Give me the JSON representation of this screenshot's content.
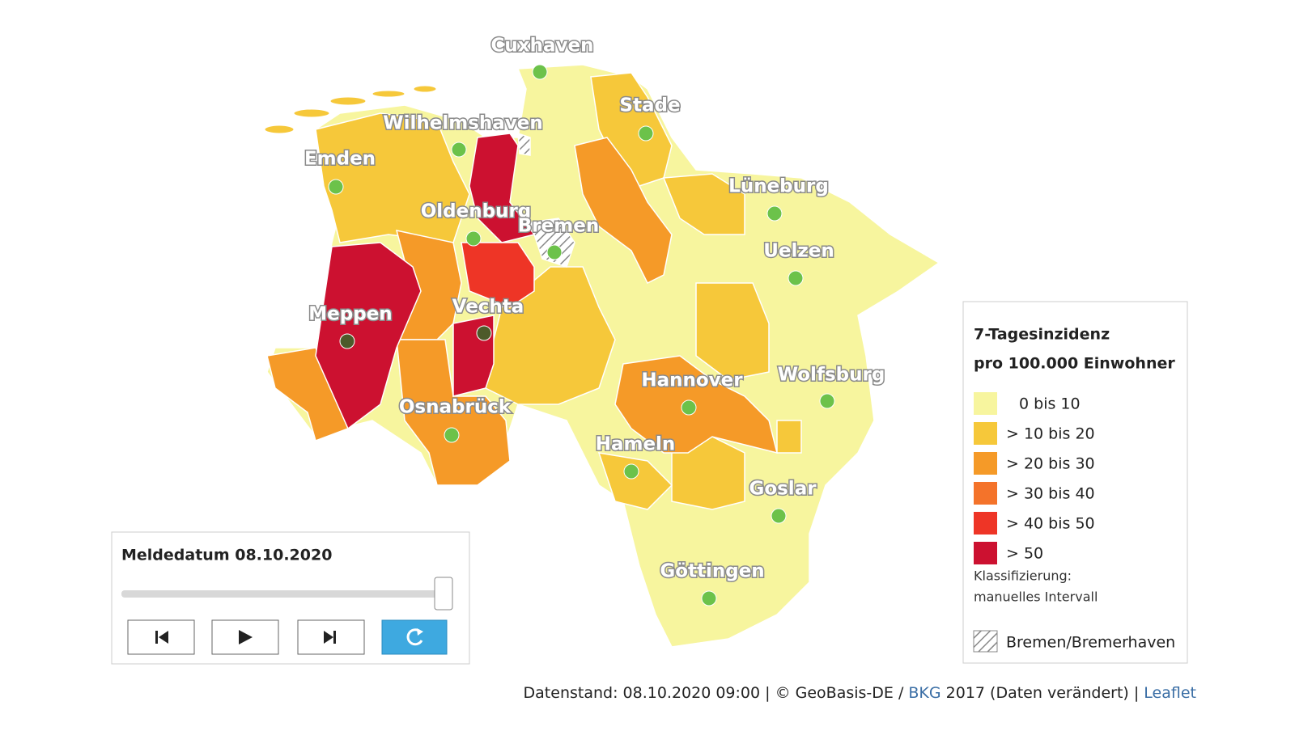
{
  "map": {
    "cities": [
      {
        "label": "Cuxhaven"
      },
      {
        "label": "Stade"
      },
      {
        "label": "Wilhelmshaven"
      },
      {
        "label": "Emden"
      },
      {
        "label": "Lüneburg"
      },
      {
        "label": "Oldenburg"
      },
      {
        "label": "Bremen"
      },
      {
        "label": "Uelzen"
      },
      {
        "label": "Meppen"
      },
      {
        "label": "Vechta"
      },
      {
        "label": "Hannover"
      },
      {
        "label": "Wolfsburg"
      },
      {
        "label": "Osnabrück"
      },
      {
        "label": "Hameln"
      },
      {
        "label": "Goslar"
      },
      {
        "label": "Göttingen"
      }
    ]
  },
  "legend": {
    "title_line1": "7-Tagesinzidenz",
    "title_line2": "pro 100.000 Einwohner",
    "classes": [
      {
        "label": "0 bis 10",
        "color": "#f7f59e"
      },
      {
        "label": "> 10 bis 20",
        "color": "#f6c83a"
      },
      {
        "label": "> 20 bis 30",
        "color": "#f59a28"
      },
      {
        "label": "> 30 bis 40",
        "color": "#f4732a"
      },
      {
        "label": "> 40 bis 50",
        "color": "#ee3526"
      },
      {
        "label": "> 50",
        "color": "#cc1130"
      }
    ],
    "classification_label": "Klassifizierung:",
    "classification_value": "manuelles Intervall",
    "hatch_label": "Bremen/Bremerhaven"
  },
  "timeline": {
    "label": "Meldedatum 08.10.2020"
  },
  "footer": {
    "parts": [
      "Datenstand: 08.10.2020 09:00 | © GeoBasis-DE / ",
      "BKG",
      " 2017 (Daten verändert) | ",
      "Leaflet"
    ]
  }
}
